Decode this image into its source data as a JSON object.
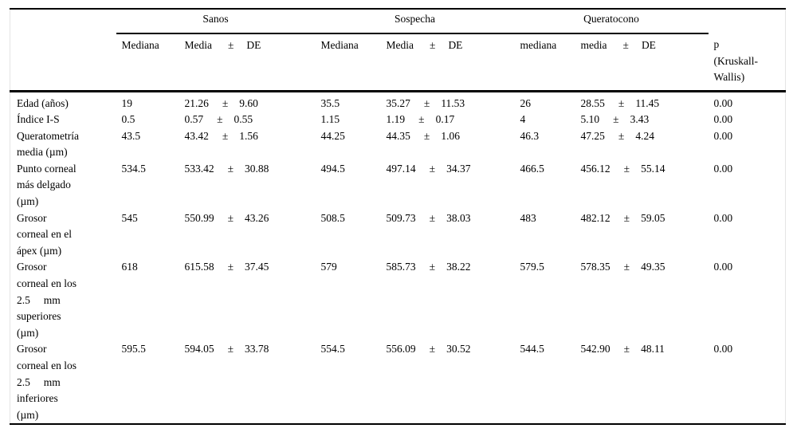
{
  "table": {
    "header": {
      "groups": [
        {
          "name": "Sanos",
          "mediana": "Mediana",
          "media": "Media",
          "pm": "±",
          "de": "DE"
        },
        {
          "name": "Sospecha",
          "mediana": "Mediana",
          "media": "Media",
          "pm": "±",
          "de": "DE"
        },
        {
          "name": "Queratocono",
          "mediana": "mediana",
          "media": "media",
          "pm": "±",
          "de": "DE"
        }
      ],
      "p_lines": [
        "p",
        "(Kruskall-",
        "Wallis)"
      ]
    },
    "rows": [
      {
        "label_lines": [
          "Edad (años)"
        ],
        "groups": [
          {
            "mediana": "19",
            "media": "21.26",
            "pm": "±",
            "de": "9.60"
          },
          {
            "mediana": "35.5",
            "media": "35.27",
            "pm": "±",
            "de": "11.53"
          },
          {
            "mediana": "26",
            "media": "28.55",
            "pm": "±",
            "de": "11.45"
          }
        ],
        "p": "0.00"
      },
      {
        "label_lines": [
          "Índice I-S"
        ],
        "groups": [
          {
            "mediana": "0.5",
            "media": "0.57",
            "pm": "±",
            "de": "0.55"
          },
          {
            "mediana": "1.15",
            "media": "1.19",
            "pm": "±",
            "de": "0.17"
          },
          {
            "mediana": "4",
            "media": "5.10",
            "pm": "±",
            "de": "3.43"
          }
        ],
        "p": "0.00"
      },
      {
        "label_lines": [
          "Queratometría",
          "media (µm)"
        ],
        "groups": [
          {
            "mediana": "43.5",
            "media": "43.42",
            "pm": "±",
            "de": "1.56"
          },
          {
            "mediana": "44.25",
            "media": "44.35",
            "pm": "±",
            "de": "1.06"
          },
          {
            "mediana": "46.3",
            "media": "47.25",
            "pm": "±",
            "de": "4.24"
          }
        ],
        "p": "0.00"
      },
      {
        "label_lines": [
          "Punto corneal",
          "más delgado",
          "(µm)"
        ],
        "groups": [
          {
            "mediana": "534.5",
            "media": "533.42",
            "pm": "±",
            "de": "30.88"
          },
          {
            "mediana": "494.5",
            "media": "497.14",
            "pm": "±",
            "de": "34.37"
          },
          {
            "mediana": "466.5",
            "media": "456.12",
            "pm": "±",
            "de": "55.14"
          }
        ],
        "p": "0.00"
      },
      {
        "label_lines": [
          "Grosor",
          "corneal en el",
          "ápex (µm)"
        ],
        "groups": [
          {
            "mediana": "545",
            "media": "550.99",
            "pm": "±",
            "de": "43.26"
          },
          {
            "mediana": "508.5",
            "media": "509.73",
            "pm": "±",
            "de": "38.03"
          },
          {
            "mediana": "483",
            "media": "482.12",
            "pm": "±",
            "de": "59.05"
          }
        ],
        "p": "0.00"
      },
      {
        "label_lines": [
          "Grosor",
          "corneal en los",
          "2.5     mm",
          "superiores",
          "(µm)"
        ],
        "groups": [
          {
            "mediana": "618",
            "media": "615.58",
            "pm": "±",
            "de": "37.45"
          },
          {
            "mediana": "579",
            "media": "585.73",
            "pm": "±",
            "de": "38.22"
          },
          {
            "mediana": "579.5",
            "media": "578.35",
            "pm": "±",
            "de": "49.35"
          }
        ],
        "p": "0.00"
      },
      {
        "label_lines": [
          "Grosor",
          "corneal en los",
          "2.5     mm",
          "inferiores",
          "(µm)"
        ],
        "groups": [
          {
            "mediana": "595.5",
            "media": "594.05",
            "pm": "±",
            "de": "33.78"
          },
          {
            "mediana": "554.5",
            "media": "556.09",
            "pm": "±",
            "de": "30.52"
          },
          {
            "mediana": "544.5",
            "media": "542.90",
            "pm": "±",
            "de": "48.11"
          }
        ],
        "p": "0.00"
      }
    ]
  }
}
